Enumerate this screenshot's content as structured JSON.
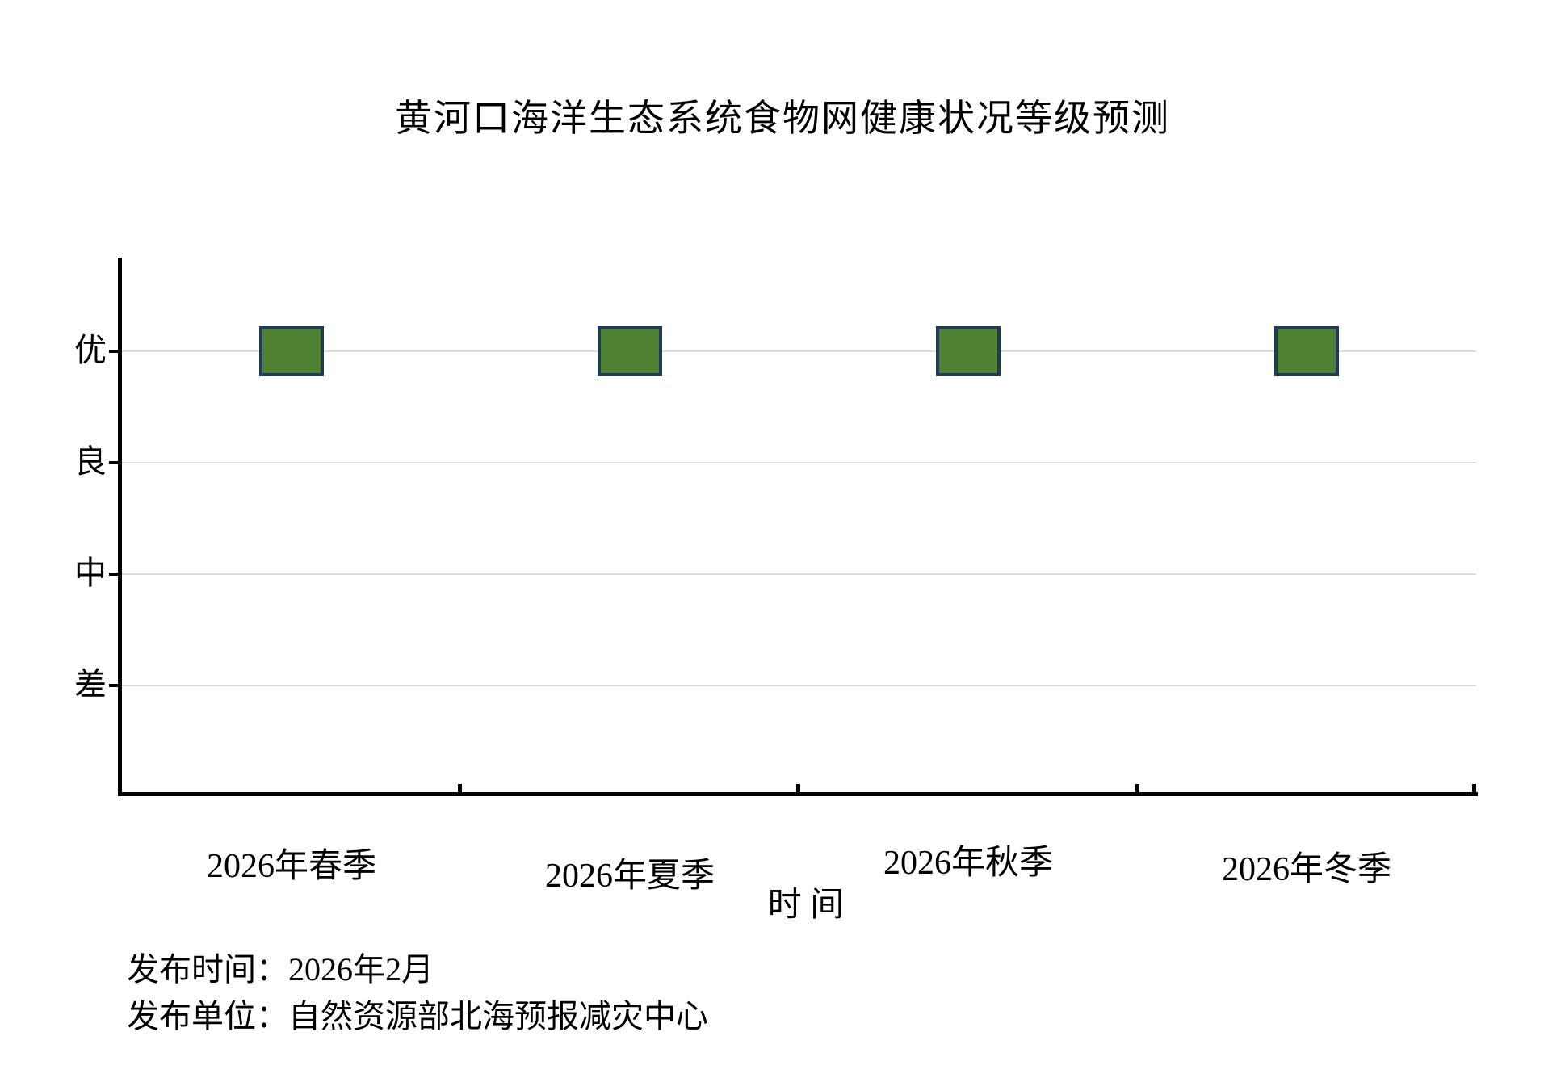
{
  "chart_data": {
    "type": "scatter",
    "title": "黄河口海洋生态系统食物网健康状况等级预测",
    "categories": [
      "2026年春季",
      "2026年夏季",
      "2026年秋季",
      "2026年冬季"
    ],
    "values": [
      "优",
      "优",
      "优",
      "优"
    ],
    "y_axis_levels_top_to_bottom": [
      "优",
      "良",
      "中",
      "差"
    ],
    "xlabel": "时 间",
    "ylabel": "",
    "marker_shape": "square",
    "marker_fill": "#4f8133",
    "marker_border": "#203b53",
    "grid": "horizontal",
    "gridline_color": "#dcdcdc",
    "axis_color": "#000000",
    "legend": "none",
    "note": "All four seasons are predicted at the top level 优 (excellent)"
  },
  "footer": {
    "release_time_line": "发布时间：2026年2月",
    "release_unit_line": "发布单位：自然资源部北海预报减灾中心"
  }
}
